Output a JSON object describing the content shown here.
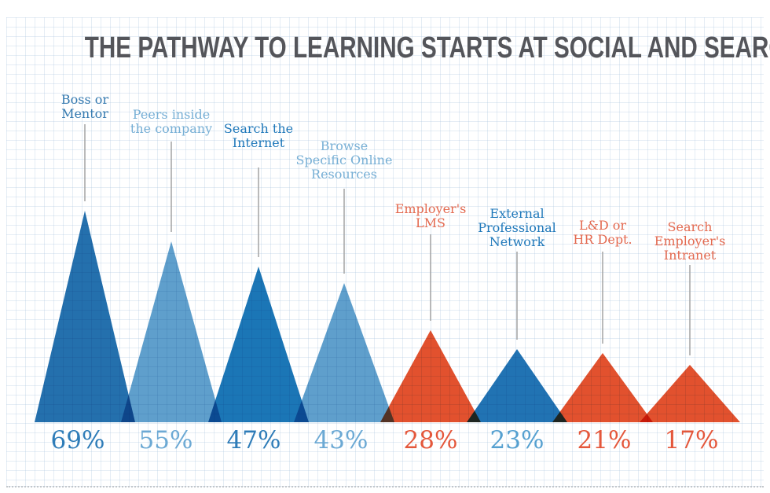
{
  "title": "THE PATHWAY TO LEARNING STARTS AT SOCIAL AND SEARCH",
  "colors": {
    "title_text": "#54555a",
    "blue_dark": "#2470ad",
    "blue_medium": "#1b76b6",
    "blue_light": "#5f9fcc",
    "orange": "#e2512e",
    "leader_line": "#a3a3a3",
    "grid_line": "#d7e2ec"
  },
  "chart_data": {
    "type": "bar",
    "shape_note": "overlapping triangle peaks on graph-paper background, heights proportional to percent",
    "title": "THE PATHWAY TO LEARNING STARTS AT SOCIAL AND SEARCH",
    "unit": "percent",
    "ylim": [
      0,
      100
    ],
    "grid": "graph paper",
    "legend": "none",
    "categories": [
      "Boss or Mentor",
      "Peers inside the company",
      "Search the Internet",
      "Browse Specific Online Resources",
      "Employer's LMS",
      "External Professional Network",
      "L&D or HR Dept.",
      "Search Employer's Intranet"
    ],
    "values": [
      69,
      55,
      47,
      43,
      28,
      23,
      21,
      17
    ]
  },
  "items": [
    {
      "key": "boss-or-mentor",
      "label_lines": [
        "Boss or",
        "Mentor"
      ],
      "value": 69,
      "value_label": "69%",
      "fill": "#2470ad",
      "label_color": "#357ab0",
      "value_color": "#2e7cb8"
    },
    {
      "key": "peers-inside-company",
      "label_lines": [
        "Peers inside",
        "the company"
      ],
      "value": 55,
      "value_label": "55%",
      "fill": "#5f9fcc",
      "label_color": "#77afd5",
      "value_color": "#6ca9d4"
    },
    {
      "key": "search-the-internet",
      "label_lines": [
        "Search the",
        "Internet"
      ],
      "value": 47,
      "value_label": "47%",
      "fill": "#1b76b6",
      "label_color": "#1f78ba",
      "value_color": "#2e7cb8"
    },
    {
      "key": "browse-specific-online-resources",
      "label_lines": [
        "Browse",
        "Specific Online",
        "Resources"
      ],
      "value": 43,
      "value_label": "43%",
      "fill": "#5f9fcc",
      "label_color": "#77afd5",
      "value_color": "#6ca9d4"
    },
    {
      "key": "employers-lms",
      "label_lines": [
        "Employer's",
        "LMS"
      ],
      "value": 28,
      "value_label": "28%",
      "fill": "#e2512e",
      "label_color": "#e4694f",
      "value_color": "#e4573b"
    },
    {
      "key": "external-professional-network",
      "label_lines": [
        "External",
        "Professional",
        "Network"
      ],
      "value": 23,
      "value_label": "23%",
      "fill": "#2173b3",
      "label_color": "#1f78ba",
      "value_color": "#55a0d0"
    },
    {
      "key": "ld-or-hr-dept",
      "label_lines": [
        "L&D or",
        "HR Dept."
      ],
      "value": 21,
      "value_label": "21%",
      "fill": "#e2512e",
      "label_color": "#e4694f",
      "value_color": "#e4573b"
    },
    {
      "key": "search-employers-intranet",
      "label_lines": [
        "Search",
        "Employer's",
        "Intranet"
      ],
      "value": 17,
      "value_label": "17%",
      "fill": "#e2512e",
      "label_color": "#e4694f",
      "value_color": "#e4573b"
    }
  ]
}
